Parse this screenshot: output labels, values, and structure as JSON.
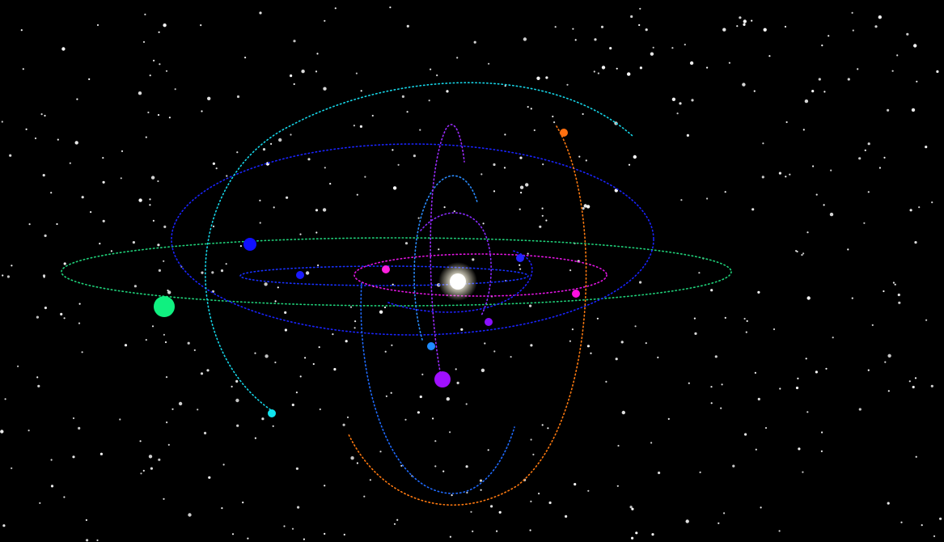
{
  "scene": {
    "background_color": "#000000",
    "star_color": "#ffffff",
    "sun_color": "#ffffff",
    "sun_glow_color": "#fff6d8"
  },
  "orbits": [
    {
      "name": "orbit-seafoam",
      "color": "#1fd27a"
    },
    {
      "name": "orbit-blue-outer",
      "color": "#1a24ff"
    },
    {
      "name": "orbit-blue-inner",
      "color": "#1830ff"
    },
    {
      "name": "orbit-magenta",
      "color": "#e415e4"
    },
    {
      "name": "orbit-cyan-tilted",
      "color": "#16d6e8"
    },
    {
      "name": "orbit-orange-polar",
      "color": "#ff7a10"
    },
    {
      "name": "orbit-azure-polar",
      "color": "#1f6bff"
    },
    {
      "name": "orbit-sky-arc",
      "color": "#2a8cff"
    },
    {
      "name": "orbit-violet-tall",
      "color": "#9b2cff"
    },
    {
      "name": "orbit-violet-short",
      "color": "#8a2cff"
    },
    {
      "name": "orbit-blue-small",
      "color": "#2020ff"
    }
  ],
  "planets": [
    {
      "name": "planet-green",
      "color": "#10f080"
    },
    {
      "name": "planet-blue-left",
      "color": "#1010ff"
    },
    {
      "name": "planet-blue-small",
      "color": "#1a1aff"
    },
    {
      "name": "planet-magenta-left",
      "color": "#ff20e0"
    },
    {
      "name": "planet-magenta-right",
      "color": "#ff10e0"
    },
    {
      "name": "planet-blue-right",
      "color": "#2424ff"
    },
    {
      "name": "planet-violet",
      "color": "#8a10ff"
    },
    {
      "name": "planet-azure",
      "color": "#1f8cff"
    },
    {
      "name": "planet-purple-large",
      "color": "#a010ff"
    },
    {
      "name": "planet-cyan",
      "color": "#10e6f0"
    },
    {
      "name": "planet-orange",
      "color": "#ff7010"
    }
  ]
}
